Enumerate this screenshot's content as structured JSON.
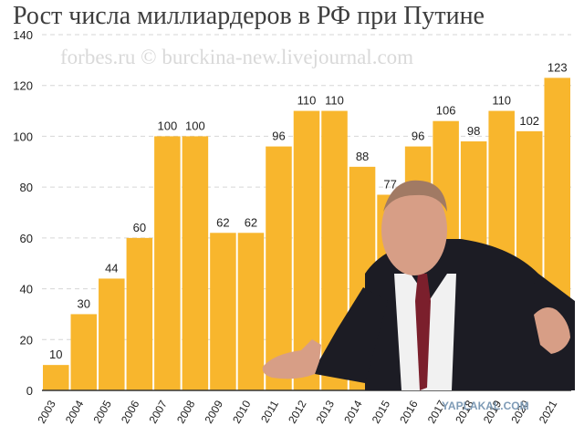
{
  "title": "Рост числа миллиардеров в РФ при Путине",
  "watermark": "forbes.ru © burckina-new.livejournal.com",
  "corner_mark": "YAPLAKAL.COM",
  "colors": {
    "bar": "#f8b62d",
    "grid": "#d6d6d6",
    "axis": "#333333",
    "text": "#222222"
  },
  "chart_data": {
    "type": "bar",
    "categories": [
      "2003",
      "2004",
      "2005",
      "2006",
      "2007",
      "2008",
      "2009",
      "2010",
      "2011",
      "2012",
      "2013",
      "2014",
      "2015",
      "2016",
      "2017",
      "2018",
      "2019",
      "2020",
      "2021"
    ],
    "values": [
      10,
      30,
      44,
      60,
      100,
      100,
      62,
      62,
      96,
      110,
      110,
      88,
      77,
      96,
      106,
      98,
      110,
      102,
      123
    ],
    "ylim": [
      0,
      140
    ],
    "yticks": [
      0,
      20,
      40,
      60,
      80,
      100,
      120,
      140
    ],
    "grid": true,
    "xlabel": "",
    "ylabel": ""
  }
}
